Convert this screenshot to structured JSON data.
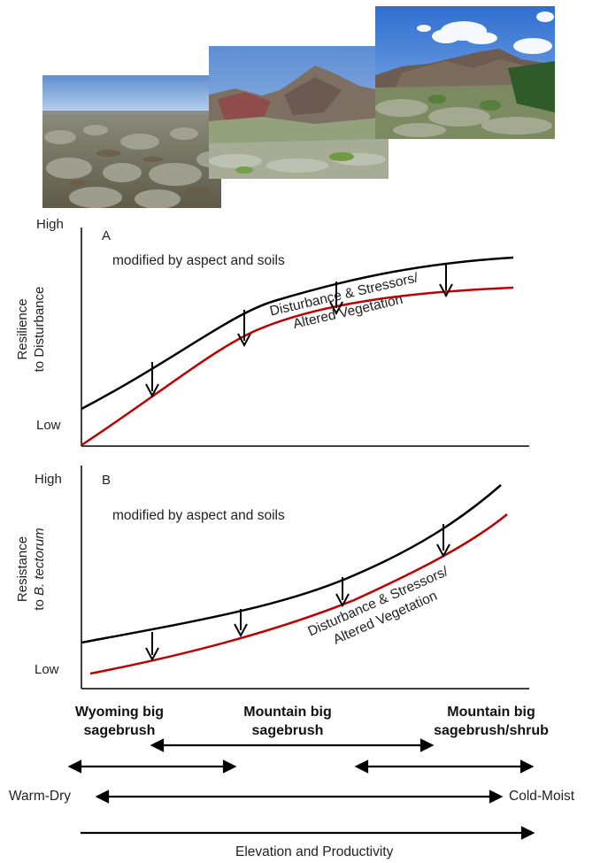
{
  "photos": [
    {
      "name": "wyoming-big-sagebrush-photo",
      "description": "Flat arid sagebrush steppe"
    },
    {
      "name": "mountain-big-sagebrush-photo",
      "description": "Sagebrush hills with red rock ridge"
    },
    {
      "name": "mountain-shrub-photo",
      "description": "Mountain slopes with sagebrush and shrubs"
    }
  ],
  "panel_a": {
    "letter": "A",
    "y_high": "High",
    "y_low": "Low",
    "y_label_line1": "Resilience",
    "y_label_line2": "to Disturbance",
    "note": "modified by aspect and soils",
    "curve_label_line1": "Disturbance & Stressors/",
    "curve_label_line2": "Altered Vegetation"
  },
  "panel_b": {
    "letter": "B",
    "y_high": "High",
    "y_low": "Low",
    "y_label_line1": "Resistance",
    "y_label_line2_prefix": "to ",
    "y_label_line2_italic": "B. tectorum",
    "note": "modified by aspect and soils",
    "curve_label_line1": "Disturbance & Stressors/",
    "curve_label_line2": "Altered Vegetation"
  },
  "types": {
    "wyoming_line1": "Wyoming big",
    "wyoming_line2": "sagebrush",
    "mountain_line1": "Mountain big",
    "mountain_line2": "sagebrush",
    "shrub_line1": "Mountain big",
    "shrub_line2": "sagebrush/shrub"
  },
  "gradient": {
    "left": "Warm-Dry",
    "right": "Cold-Moist",
    "bottom": "Elevation and Productivity"
  },
  "colors": {
    "upper_curve": "#000000",
    "lower_curve": "#c00000",
    "sky": "#6f9fd8"
  }
}
